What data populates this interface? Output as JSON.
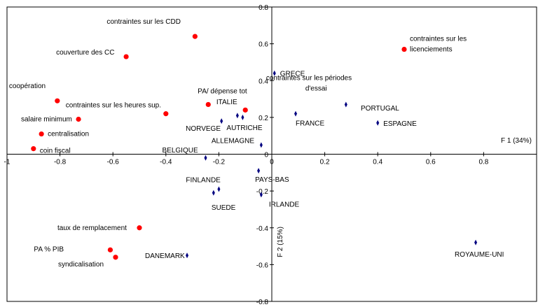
{
  "chart_data": {
    "type": "scatter",
    "title": "",
    "xlabel": "F 1 (34%)",
    "ylabel": "F 2 (15%)",
    "xlim": [
      -1,
      1
    ],
    "ylim": [
      -0.8,
      0.8
    ],
    "x_ticks": [
      "-1",
      "-0.8",
      "-0.6",
      "-0.4",
      "-0.2",
      "0",
      "0.2",
      "0.4",
      "0.6",
      "0.8"
    ],
    "y_ticks": [
      "-0.8",
      "-0.6",
      "-0.4",
      "-0.2",
      "0",
      "0.2",
      "0.4",
      "0.6",
      "0.8"
    ],
    "grid": false,
    "colors": {
      "variables": "#ff0000",
      "countries": "#000080",
      "axes": "#000000"
    },
    "series": [
      {
        "marker": "circle",
        "points": [
          {
            "label": "contraintes sur les CDD",
            "x": -0.29,
            "y": 0.64
          },
          {
            "label": "couverture des CC",
            "x": -0.55,
            "y": 0.53
          },
          {
            "label": "contraintes sur les licenciements",
            "x": 0.5,
            "y": 0.57
          },
          {
            "label": "coopération",
            "x": -0.81,
            "y": 0.29
          },
          {
            "label": "PA/ dépense tot",
            "x": -0.24,
            "y": 0.27
          },
          {
            "label": "contraintes sur les heures sup.",
            "x": -0.4,
            "y": 0.22
          },
          {
            "label": "",
            "x": -0.1,
            "y": 0.24
          },
          {
            "label": "salaire minimum",
            "x": -0.73,
            "y": 0.19
          },
          {
            "label": "centralisation",
            "x": -0.87,
            "y": 0.11
          },
          {
            "label": "coin fiscal",
            "x": -0.9,
            "y": 0.03
          },
          {
            "label": "taux de remplacement",
            "x": -0.5,
            "y": -0.4
          },
          {
            "label": "PA % PIB",
            "x": -0.61,
            "y": -0.52
          },
          {
            "label": "syndicalisation",
            "x": -0.59,
            "y": -0.56
          }
        ]
      },
      {
        "marker": "diamond",
        "points": [
          {
            "label": "GRECE",
            "x": 0.01,
            "y": 0.44
          },
          {
            "label": "contraintes sur les périodes d'essai",
            "x": 0.28,
            "y": 0.27
          },
          {
            "label": "ITALIE",
            "x": -0.13,
            "y": 0.21
          },
          {
            "label": "AUTRICHE",
            "x": -0.11,
            "y": 0.2
          },
          {
            "label": "NORVEGE",
            "x": -0.19,
            "y": 0.18
          },
          {
            "label": "FRANCE",
            "x": 0.09,
            "y": 0.22
          },
          {
            "label": "ESPAGNE",
            "x": 0.4,
            "y": 0.17
          },
          {
            "label": "ALLEMAGNE",
            "x": -0.04,
            "y": 0.05
          },
          {
            "label": "BELGIQUE",
            "x": -0.25,
            "y": -0.02
          },
          {
            "label": "PAYS-BAS",
            "x": -0.05,
            "y": -0.09
          },
          {
            "label": "FINLANDE",
            "x": -0.2,
            "y": -0.19
          },
          {
            "label": "SUEDE",
            "x": -0.22,
            "y": -0.21
          },
          {
            "label": "IRLANDE",
            "x": -0.04,
            "y": -0.22
          },
          {
            "label": "DANEMARK",
            "x": -0.32,
            "y": -0.55
          },
          {
            "label": "ROYAUME-UNI",
            "x": 0.77,
            "y": -0.48
          }
        ]
      }
    ],
    "extra_labels": [
      "PORTUGAL"
    ]
  }
}
